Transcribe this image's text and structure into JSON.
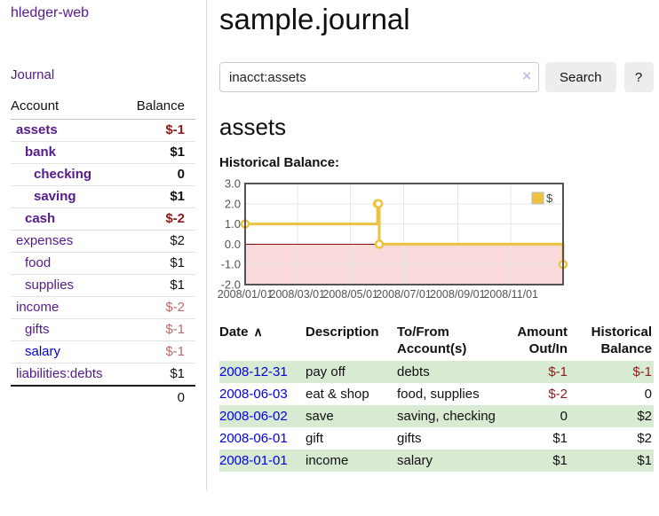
{
  "colors": {
    "link_blue": "#0000e6",
    "link_purple": "#551a8b",
    "negative_dark": "#8e1b1b",
    "negative_light": "#b96c6c",
    "row_stripe_green": "#d9ead3",
    "button_bg": "#ededed",
    "chart_line": "#edc240",
    "chart_negative_fill": "#f9d9d9",
    "chart_zero_line": "#8b0000",
    "chart_border": "#545454",
    "chart_grid": "#e6e6e6"
  },
  "sidebar": {
    "brand": "hledger-web",
    "journal_link": "Journal",
    "account_col": "Account",
    "balance_col": "Balance",
    "accounts": [
      {
        "name": "assets",
        "indent": 1,
        "bold": true,
        "link": "purple",
        "balance": "$-1",
        "balance_style": "dark-red"
      },
      {
        "name": "bank",
        "indent": 2,
        "bold": true,
        "link": "purple",
        "balance": "$1",
        "balance_style": "plain"
      },
      {
        "name": "checking",
        "indent": 3,
        "bold": true,
        "link": "purple",
        "balance": "0",
        "balance_style": "plain"
      },
      {
        "name": "saving",
        "indent": 3,
        "bold": true,
        "link": "purple",
        "balance": "$1",
        "balance_style": "plain"
      },
      {
        "name": "cash",
        "indent": 2,
        "bold": true,
        "link": "purple",
        "balance": "$-2",
        "balance_style": "dark-red"
      },
      {
        "name": "expenses",
        "indent": 1,
        "bold": false,
        "link": "purple",
        "balance": "$2",
        "balance_style": "plain"
      },
      {
        "name": "food",
        "indent": 2,
        "bold": false,
        "link": "purple",
        "balance": "$1",
        "balance_style": "plain"
      },
      {
        "name": "supplies",
        "indent": 2,
        "bold": false,
        "link": "purple",
        "balance": "$1",
        "balance_style": "plain"
      },
      {
        "name": "income",
        "indent": 1,
        "bold": false,
        "link": "purple",
        "balance": "$-2",
        "balance_style": "light-red"
      },
      {
        "name": "gifts",
        "indent": 2,
        "bold": false,
        "link": "purple",
        "balance": "$-1",
        "balance_style": "light-red"
      },
      {
        "name": "salary",
        "indent": 2,
        "bold": false,
        "link": "blue",
        "balance": "$-1",
        "balance_style": "light-red"
      },
      {
        "name": "liabilities:debts",
        "indent": 1,
        "bold": false,
        "link": "purple",
        "balance": "$1",
        "balance_style": "plain"
      }
    ],
    "total": "0"
  },
  "main": {
    "title": "sample.journal",
    "search": {
      "value": "inacct:assets",
      "clear_icon": "×",
      "search_button": "Search",
      "help_button": "?"
    },
    "account_heading": "assets",
    "chart_heading": "Historical Balance:"
  },
  "chart_data": {
    "type": "line",
    "style": "step",
    "title": "Historical Balance",
    "legend": "$",
    "legend_position": "top-right",
    "x": [
      "2008-01-01",
      "2008-06-01",
      "2008-06-02",
      "2008-06-03",
      "2008-12-31"
    ],
    "values": [
      1,
      2,
      2,
      0,
      -1
    ],
    "x_range": [
      "2008-01-01",
      "2008-12-31"
    ],
    "ylim": [
      -2,
      3
    ],
    "ytick_labels": [
      "3.0",
      "2.0",
      "1.0",
      "0.0",
      "-1.0",
      "-2.0"
    ],
    "yticks": [
      3,
      2,
      1,
      0,
      -1,
      -2
    ],
    "xticks": [
      "2008-01-01",
      "2008-03-01",
      "2008-05-01",
      "2008-07-01",
      "2008-09-01",
      "2008-11-01"
    ],
    "xtick_labels": [
      "2008/01/01",
      "2008/03/01",
      "2008/05/01",
      "2008/07/01",
      "2008/09/01",
      "2008/11/01"
    ],
    "grid": true,
    "negative_region_shaded": true
  },
  "register": {
    "headers": {
      "date": "Date",
      "sort_indicator": "∧",
      "description": "Description",
      "accounts": "To/From Account(s)",
      "amount": "Amount Out/In",
      "balance": "Historical Balance"
    },
    "rows": [
      {
        "date": "2008-12-31",
        "description": "pay off",
        "accounts": "debts",
        "amount": "$-1",
        "balance": "$-1"
      },
      {
        "date": "2008-06-03",
        "description": "eat & shop",
        "accounts": "food, supplies",
        "amount": "$-2",
        "balance": "0"
      },
      {
        "date": "2008-06-02",
        "description": "save",
        "accounts": "saving, checking",
        "amount": "0",
        "balance": "$2"
      },
      {
        "date": "2008-06-01",
        "description": "gift",
        "accounts": "gifts",
        "amount": "$1",
        "balance": "$2"
      },
      {
        "date": "2008-01-01",
        "description": "income",
        "accounts": "salary",
        "amount": "$1",
        "balance": "$1"
      }
    ]
  }
}
